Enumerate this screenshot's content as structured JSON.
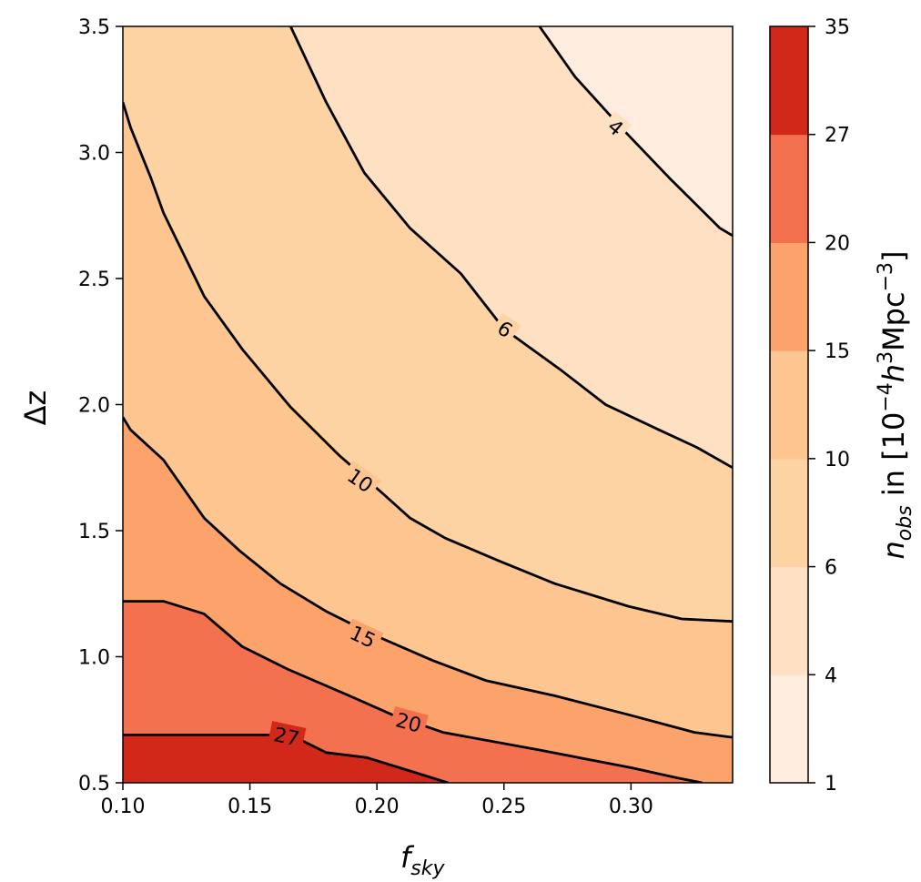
{
  "chart_data": {
    "type": "contour",
    "xlabel_main": "f",
    "xlabel_sub": "sky",
    "ylabel": "Δz",
    "xlim": [
      0.1,
      0.34
    ],
    "ylim": [
      0.5,
      3.5
    ],
    "x_ticks": [
      0.1,
      0.15,
      0.2,
      0.25,
      0.3
    ],
    "x_tick_labels": [
      "0.10",
      "0.15",
      "0.20",
      "0.25",
      "0.30"
    ],
    "y_ticks": [
      0.5,
      1.0,
      1.5,
      2.0,
      2.5,
      3.0,
      3.5
    ],
    "y_tick_labels": [
      "0.5",
      "1.0",
      "1.5",
      "2.0",
      "2.5",
      "3.0",
      "3.5"
    ],
    "levels": [
      1,
      4,
      6,
      10,
      15,
      20,
      27,
      35
    ],
    "level_colors": [
      "#feedde",
      "#fee1c3",
      "#fdd3a4",
      "#fdc590",
      "#fca26b",
      "#f3714e",
      "#d22819"
    ],
    "contours": [
      {
        "level": 4,
        "label": "4",
        "points": [
          [
            0.264,
            3.5
          ],
          [
            0.278,
            3.3
          ],
          [
            0.296,
            3.1
          ],
          [
            0.315,
            2.9
          ],
          [
            0.335,
            2.7
          ],
          [
            0.34,
            2.67
          ]
        ]
      },
      {
        "level": 6,
        "label": "6",
        "points": [
          [
            0.166,
            3.5
          ],
          [
            0.18,
            3.2
          ],
          [
            0.195,
            2.92
          ],
          [
            0.213,
            2.7
          ],
          [
            0.233,
            2.52
          ],
          [
            0.25,
            2.3
          ],
          [
            0.272,
            2.14
          ],
          [
            0.29,
            2.0
          ],
          [
            0.311,
            1.9
          ],
          [
            0.326,
            1.83
          ],
          [
            0.34,
            1.75
          ]
        ]
      },
      {
        "level": 10,
        "label": "10",
        "points": [
          [
            0.1,
            3.2
          ],
          [
            0.103,
            3.1
          ],
          [
            0.111,
            2.9
          ],
          [
            0.116,
            2.76
          ],
          [
            0.132,
            2.43
          ],
          [
            0.147,
            2.22
          ],
          [
            0.166,
            1.99
          ],
          [
            0.185,
            1.8
          ],
          [
            0.202,
            1.65
          ],
          [
            0.213,
            1.55
          ],
          [
            0.227,
            1.47
          ],
          [
            0.248,
            1.38
          ],
          [
            0.27,
            1.29
          ],
          [
            0.299,
            1.2
          ],
          [
            0.32,
            1.15
          ],
          [
            0.34,
            1.14
          ]
        ]
      },
      {
        "level": 15,
        "label": "15",
        "points": [
          [
            0.1,
            1.95
          ],
          [
            0.103,
            1.9
          ],
          [
            0.116,
            1.78
          ],
          [
            0.132,
            1.55
          ],
          [
            0.146,
            1.42
          ],
          [
            0.162,
            1.29
          ],
          [
            0.18,
            1.18
          ],
          [
            0.198,
            1.09
          ],
          [
            0.222,
            0.985
          ],
          [
            0.243,
            0.905
          ],
          [
            0.27,
            0.845
          ],
          [
            0.299,
            0.77
          ],
          [
            0.325,
            0.7
          ],
          [
            0.34,
            0.68
          ]
        ]
      },
      {
        "level": 20,
        "label": "20",
        "points": [
          [
            0.1,
            1.22
          ],
          [
            0.116,
            1.22
          ],
          [
            0.132,
            1.17
          ],
          [
            0.147,
            1.04
          ],
          [
            0.165,
            0.95
          ],
          [
            0.188,
            0.85
          ],
          [
            0.206,
            0.77
          ],
          [
            0.226,
            0.7
          ],
          [
            0.264,
            0.63
          ],
          [
            0.3,
            0.56
          ],
          [
            0.318,
            0.52
          ],
          [
            0.328,
            0.5
          ]
        ]
      },
      {
        "level": 27,
        "label": "27",
        "points": [
          [
            0.1,
            0.69
          ],
          [
            0.16,
            0.69
          ],
          [
            0.166,
            0.69
          ],
          [
            0.18,
            0.62
          ],
          [
            0.196,
            0.6
          ],
          [
            0.212,
            0.55
          ],
          [
            0.228,
            0.5
          ]
        ]
      }
    ],
    "colorbar": {
      "tick_labels": [
        "1",
        "4",
        "6",
        "10",
        "15",
        "20",
        "27",
        "35"
      ],
      "label": "n",
      "label_sub": "obs",
      "label_mid": " in  [10",
      "label_exp1": "−4",
      "label_h": "h",
      "label_exp2": "3",
      "label_unit": "Mpc",
      "label_exp3": "−3",
      "label_end": "]"
    }
  }
}
